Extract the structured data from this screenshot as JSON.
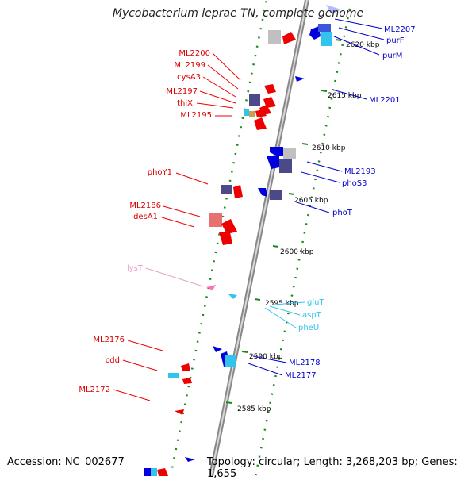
{
  "title": "Mycobacterium leprae TN, complete genome",
  "accession": "Accession: NC_002677",
  "topology": "Topology: circular; Length: 3,268,203 bp; Genes: 1,655",
  "colors": {
    "backbone": "#888888",
    "tick_dots": "#1a8a1a",
    "reverse_genes": "#ee0000",
    "forward_genes": "#0000dd",
    "trna": "#33c4ee",
    "rrna_label": "#e8a0c8",
    "grey_gene": "#c0c0c0",
    "dark_gene": "#4a4a8a"
  },
  "scale_labels": [
    "2620 kbp",
    "2615 kbp",
    "2610 kbp",
    "2605 kbp",
    "2600 kbp",
    "2595 kbp",
    "2590 kbp",
    "2585 kbp"
  ],
  "left_labels": [
    {
      "text": "ML2200",
      "color": "#dd0000"
    },
    {
      "text": "ML2199",
      "color": "#dd0000"
    },
    {
      "text": "cysA3",
      "color": "#dd0000"
    },
    {
      "text": "ML2197",
      "color": "#dd0000"
    },
    {
      "text": "thiX",
      "color": "#dd0000"
    },
    {
      "text": "ML2195",
      "color": "#dd0000"
    },
    {
      "text": "phoY1",
      "color": "#dd0000"
    },
    {
      "text": "ML2186",
      "color": "#dd0000"
    },
    {
      "text": "desA1",
      "color": "#dd0000"
    },
    {
      "text": "lysT",
      "color": "#e8a0c8"
    },
    {
      "text": "ML2176",
      "color": "#dd0000"
    },
    {
      "text": "cdd",
      "color": "#dd0000"
    },
    {
      "text": "ML2172",
      "color": "#dd0000"
    }
  ],
  "right_labels": [
    {
      "text": "ML2207",
      "color": "#0000cc"
    },
    {
      "text": "purF",
      "color": "#0000cc"
    },
    {
      "text": "purM",
      "color": "#0000cc"
    },
    {
      "text": "ML2201",
      "color": "#0000cc"
    },
    {
      "text": "ML2193",
      "color": "#0000cc"
    },
    {
      "text": "phoS3",
      "color": "#0000cc"
    },
    {
      "text": "phoT",
      "color": "#0000cc"
    },
    {
      "text": "gluT",
      "color": "#33c4ee"
    },
    {
      "text": "aspT",
      "color": "#33c4ee"
    },
    {
      "text": "pheU",
      "color": "#33c4ee"
    },
    {
      "text": "ML2178",
      "color": "#0000cc"
    },
    {
      "text": "ML2177",
      "color": "#0000cc"
    }
  ]
}
